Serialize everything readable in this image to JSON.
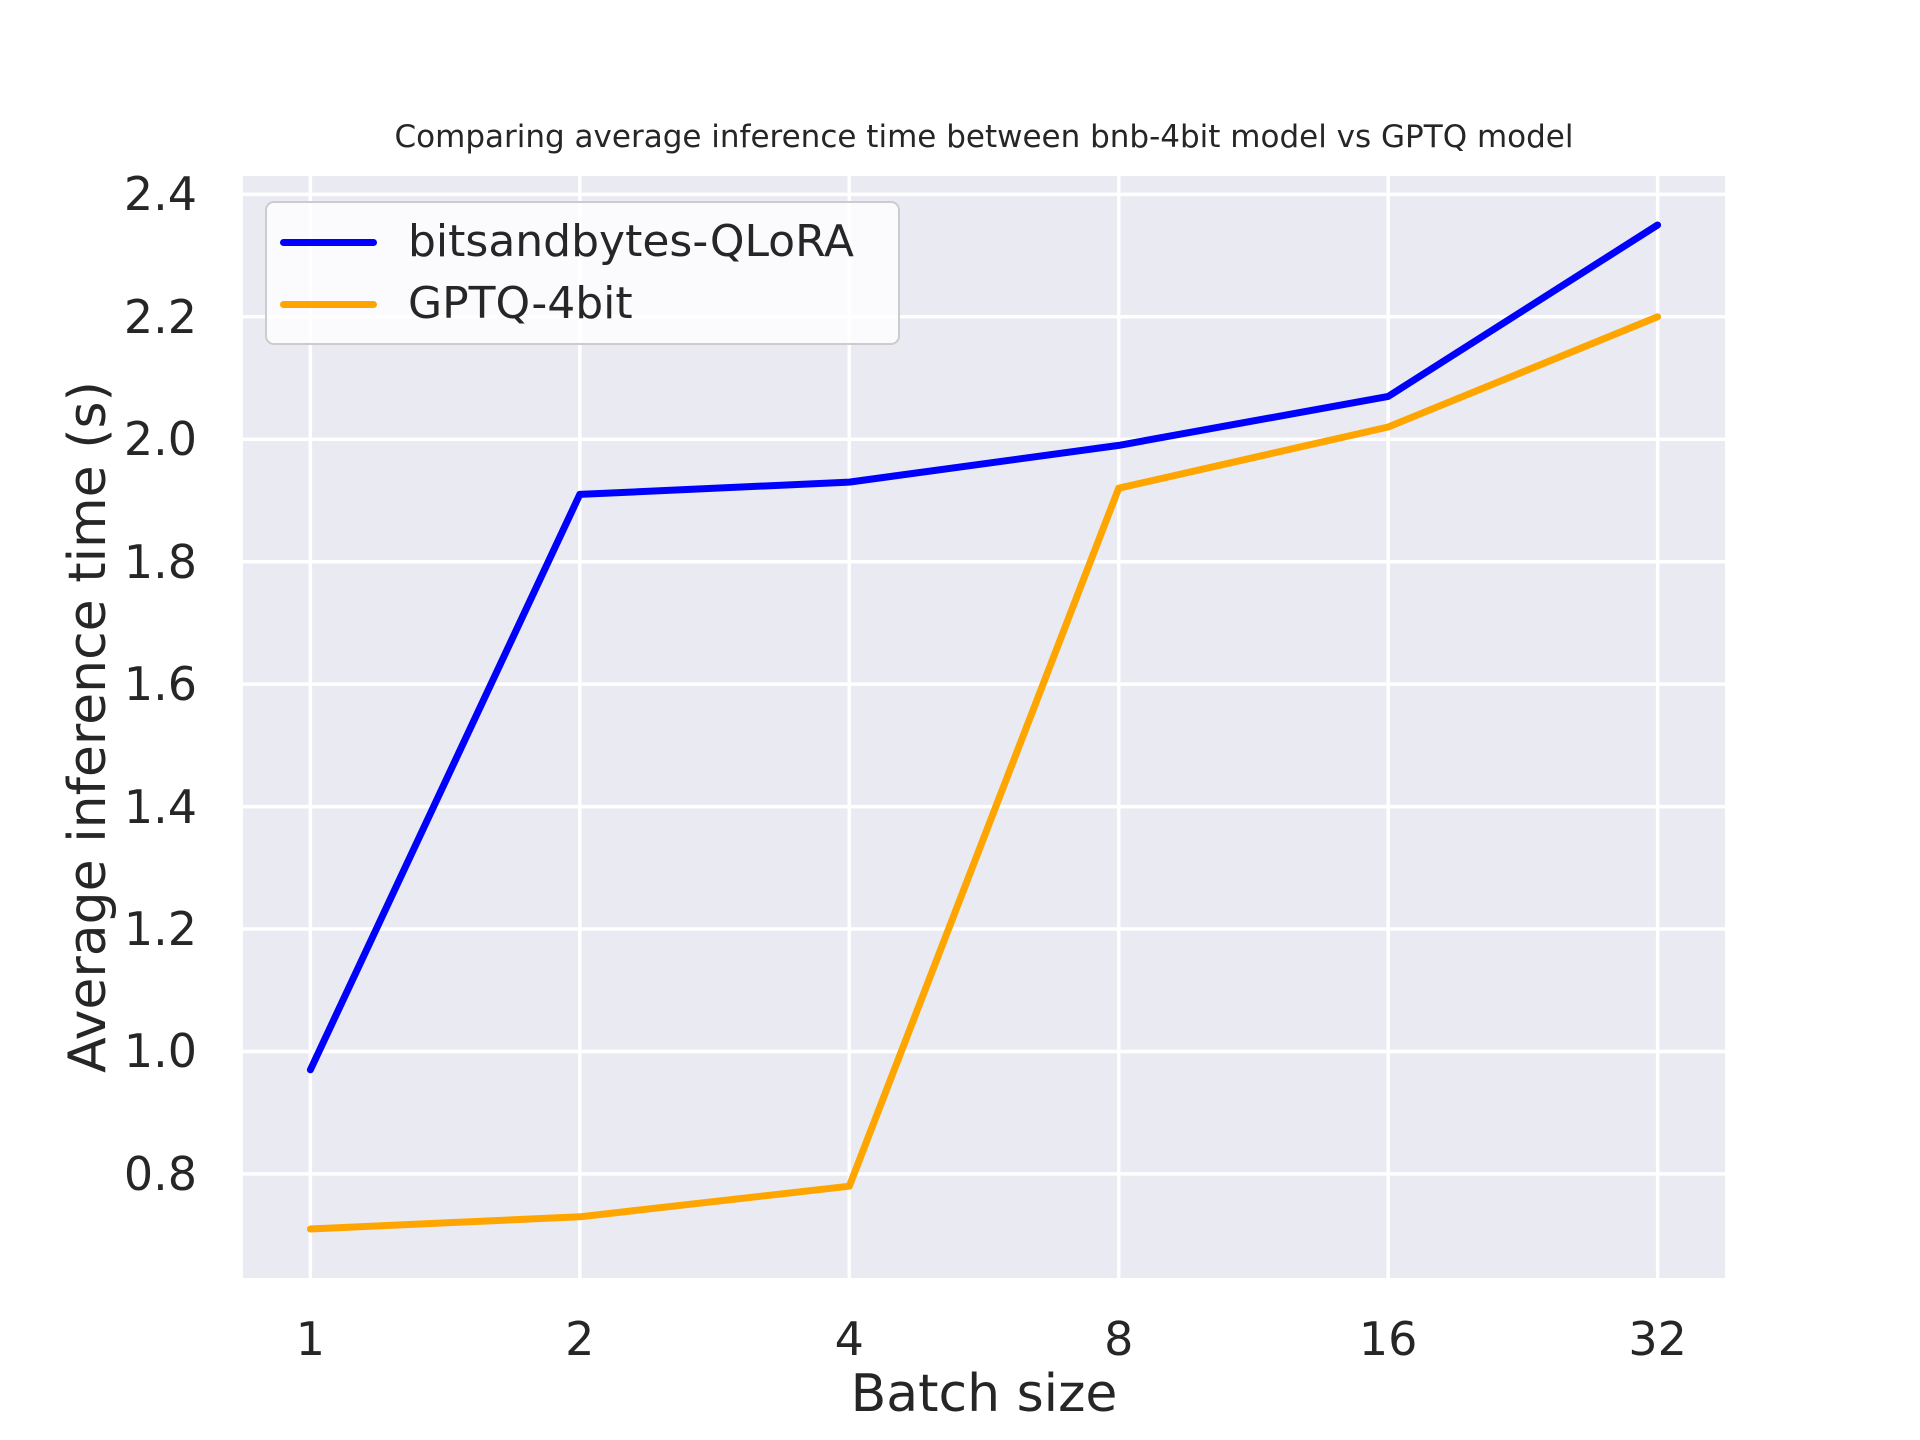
{
  "page": {
    "background_color": "#ffffff"
  },
  "chart_data": {
    "type": "line",
    "title": "Comparing average inference time between bnb-4bit model vs GPTQ model",
    "xlabel": "Batch size",
    "ylabel": "Average inference time (s)",
    "x": [
      1,
      2,
      4,
      8,
      16,
      32
    ],
    "x_scale": "log2",
    "xtick_labels": [
      "1",
      "2",
      "4",
      "8",
      "16",
      "32"
    ],
    "yticks": [
      0.8,
      1.0,
      1.2,
      1.4,
      1.6,
      1.8,
      2.0,
      2.2,
      2.4
    ],
    "ytick_labels": [
      "0.8",
      "1.0",
      "1.2",
      "1.4",
      "1.6",
      "1.8",
      "2.0",
      "2.2",
      "2.4"
    ],
    "ylim": [
      0.63,
      2.43
    ],
    "xlim_log2": [
      -0.25,
      5.25
    ],
    "grid": true,
    "legend_position": "upper left",
    "series": [
      {
        "name": "bitsandbytes-QLoRA",
        "color": "#0000ff",
        "values": [
          0.97,
          1.91,
          1.93,
          1.99,
          2.07,
          2.35
        ]
      },
      {
        "name": "GPTQ-4bit",
        "color": "#ffa500",
        "values": [
          0.71,
          0.73,
          0.78,
          1.92,
          2.02,
          2.2
        ]
      }
    ],
    "style": {
      "plot_bg": "#EAEAF2",
      "grid_color": "#ffffff",
      "text_color": "#262626",
      "line_width": 7,
      "grid_width": 3.5
    }
  }
}
